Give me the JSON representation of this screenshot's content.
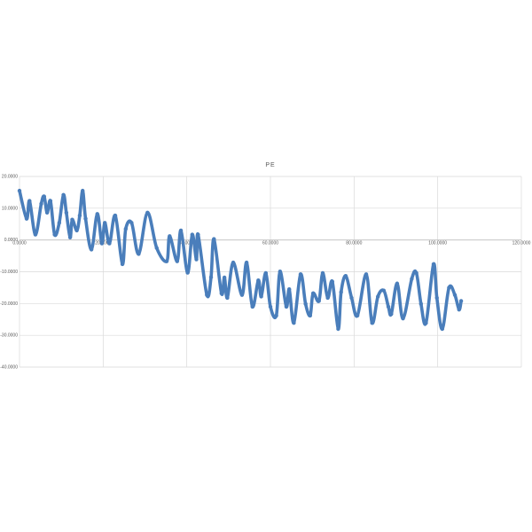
{
  "chart_data": {
    "type": "scatter",
    "title": "PE",
    "xlabel": "",
    "ylabel": "",
    "xlim": [
      0,
      120
    ],
    "ylim": [
      -40,
      20
    ],
    "x_ticks": [
      "0.0000",
      "20.0000",
      "40.0000",
      "60.0000",
      "80.0000",
      "100.0000",
      "120.0000"
    ],
    "y_ticks": [
      "20.0000",
      "10.0000",
      "0.0000",
      "-10.0000",
      "-20.0000",
      "-30.0000",
      "-40.0000"
    ],
    "grid": true,
    "legend": "none",
    "series_color": "#4a7ebb",
    "series": [
      {
        "x": [
          0,
          1.7,
          2.4,
          3.8,
          5.2,
          5.9,
          6.6,
          7.4,
          8.4,
          9.5,
          10.5,
          11.2,
          12.1,
          12.6,
          13.7,
          14.4,
          15.1,
          15.8,
          17.2,
          18.6,
          19.7,
          20.4,
          21.5,
          22.9,
          24.6,
          25.4,
          26.8,
          28.5,
          30.6,
          32.8,
          35.2,
          35.9,
          37.7,
          38.6,
          40.2,
          41.3,
          42.3,
          42.7,
          44.8,
          45.8,
          46.5,
          48.3,
          49,
          49.7,
          51.1,
          53.2,
          54.3,
          55.7,
          57.1,
          57.8,
          58.9,
          60,
          61.4,
          62.3,
          63.8,
          64.5,
          65.6,
          67.2,
          68.4,
          69.5,
          70.2,
          71.6,
          72.5,
          73.7,
          74.8,
          76.2,
          76.9,
          78,
          79.4,
          80.8,
          82.9,
          84.3,
          85.7,
          87.1,
          88.2,
          88.9,
          90.3,
          91.7,
          93.8,
          94.9,
          96,
          97.2,
          99,
          99.8,
          101.1,
          102.7,
          104.1,
          105.1,
          105.6
        ],
        "y": [
          15.5,
          6.7,
          12.3,
          1.7,
          11.4,
          13.7,
          8.6,
          12.3,
          1.7,
          5.4,
          14.2,
          8.6,
          0.8,
          6.4,
          3,
          7.7,
          15.5,
          6.7,
          -3,
          8.2,
          -1.1,
          5.4,
          -1.1,
          7.7,
          -7.6,
          3.5,
          5.4,
          -4.4,
          8.6,
          -2.5,
          -6.7,
          1.2,
          -6.7,
          3,
          -10.3,
          1.7,
          -6.1,
          1.7,
          -17.3,
          -11.7,
          0.3,
          -16.8,
          -11.8,
          -18.2,
          -7.1,
          -17.3,
          -7.1,
          -21,
          -12.7,
          -17.8,
          -10.4,
          -21,
          -23.8,
          -9.9,
          -21,
          -15.5,
          -26.1,
          -10.8,
          -20.1,
          -23.8,
          -16.8,
          -19.2,
          -10.4,
          -18.2,
          -13.1,
          -28,
          -16.4,
          -11.3,
          -18.2,
          -23.8,
          -10.8,
          -26.1,
          -17.8,
          -15.9,
          -21,
          -23.3,
          -13.7,
          -24.7,
          -12.2,
          -10.4,
          -20.1,
          -26.1,
          -7.6,
          -18.2,
          -28,
          -15,
          -17.3,
          -21.9,
          -19.2
        ]
      }
    ]
  }
}
